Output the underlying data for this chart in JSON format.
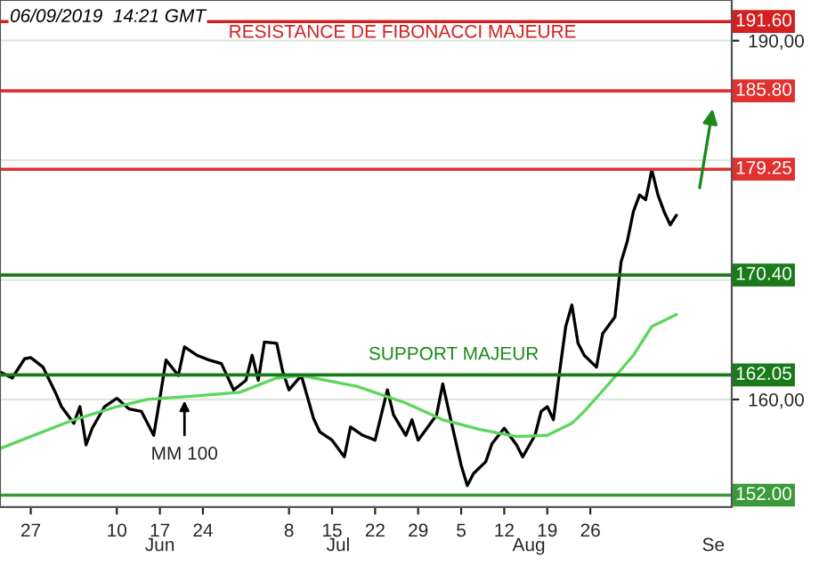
{
  "chart_data": {
    "type": "line",
    "series": [
      {
        "color": "#000000",
        "x": [
          "2019-05-22",
          "2019-05-24",
          "2019-05-26",
          "2019-05-27",
          "2019-05-29",
          "2019-05-31",
          "2019-06-01",
          "2019-06-03",
          "2019-06-04",
          "2019-06-05",
          "2019-06-06",
          "2019-06-08",
          "2019-06-10",
          "2019-06-12",
          "2019-06-14",
          "2019-06-16",
          "2019-06-17",
          "2019-06-18",
          "2019-06-20",
          "2019-06-21",
          "2019-06-23",
          "2019-06-25",
          "2019-06-27",
          "2019-06-29",
          "2019-07-01",
          "2019-07-02",
          "2019-07-03",
          "2019-07-04",
          "2019-07-06",
          "2019-07-07",
          "2019-07-08",
          "2019-07-10",
          "2019-07-12",
          "2019-07-13",
          "2019-07-15",
          "2019-07-17",
          "2019-07-18",
          "2019-07-20",
          "2019-07-22",
          "2019-07-24",
          "2019-07-25",
          "2019-07-27",
          "2019-07-28",
          "2019-07-29",
          "2019-08-01",
          "2019-08-02",
          "2019-08-03",
          "2019-08-05",
          "2019-08-06",
          "2019-08-07",
          "2019-08-09",
          "2019-08-10",
          "2019-08-12",
          "2019-08-14",
          "2019-08-15",
          "2019-08-17",
          "2019-08-18",
          "2019-08-19",
          "2019-08-20",
          "2019-08-21",
          "2019-08-22",
          "2019-08-23",
          "2019-08-24",
          "2019-08-25",
          "2019-08-27",
          "2019-08-28",
          "2019-08-30",
          "2019-08-31",
          "2019-09-01",
          "2019-09-02",
          "2019-09-03",
          "2019-09-04",
          "2019-09-05",
          "2019-09-06",
          "2019-09-07",
          "2019-09-08",
          "2019-09-09"
        ],
        "values": [
          162.3,
          161.8,
          163.4,
          163.5,
          162.7,
          160.6,
          159.4,
          158.0,
          159.4,
          156.2,
          157.6,
          159.4,
          160.1,
          159.2,
          159.0,
          157.0,
          160.1,
          163.3,
          162.0,
          164.4,
          163.7,
          163.3,
          163.0,
          160.8,
          161.6,
          163.7,
          161.6,
          164.8,
          164.7,
          162.3,
          160.8,
          162.0,
          158.4,
          157.3,
          156.6,
          155.2,
          157.7,
          157.0,
          156.6,
          160.8,
          158.7,
          157.0,
          158.3,
          156.6,
          158.7,
          161.3,
          159.0,
          154.5,
          152.8,
          153.8,
          154.8,
          156.3,
          157.6,
          156.2,
          155.2,
          157.0,
          159.0,
          159.4,
          158.3,
          162.3,
          166.1,
          167.9,
          164.7,
          163.7,
          162.7,
          165.5,
          166.9,
          171.5,
          173.2,
          175.7,
          177.1,
          176.7,
          179.2,
          177.1,
          175.7,
          174.6,
          175.4
        ]
      },
      {
        "color": "#5cd65c",
        "x": [
          "2019-05-22",
          "2019-06-03",
          "2019-06-10",
          "2019-06-15",
          "2019-06-23",
          "2019-06-30",
          "2019-07-06",
          "2019-07-10",
          "2019-07-19",
          "2019-07-27",
          "2019-08-02",
          "2019-08-08",
          "2019-08-14",
          "2019-08-19",
          "2019-08-23",
          "2019-08-25",
          "2019-08-29",
          "2019-09-02",
          "2019-09-05",
          "2019-09-09"
        ],
        "values": [
          155.9,
          158.3,
          159.4,
          160.0,
          160.3,
          160.6,
          161.8,
          162.0,
          161.1,
          159.7,
          158.3,
          157.5,
          156.9,
          157.0,
          158.0,
          159.0,
          161.3,
          163.7,
          166.1,
          167.1
        ]
      }
    ],
    "xlim": [
      "2019-05-22",
      "2019-09-18"
    ],
    "xticks": [
      {
        "value": "2019-05-27",
        "label": "27"
      },
      {
        "value": "2019-06-10",
        "label": "10"
      },
      {
        "value": "2019-06-17",
        "label": "17"
      },
      {
        "value": "2019-06-24",
        "label": "24"
      },
      {
        "value": "2019-07-08",
        "label": "8"
      },
      {
        "value": "2019-07-15",
        "label": "15"
      },
      {
        "value": "2019-07-22",
        "label": "22"
      },
      {
        "value": "2019-07-29",
        "label": "29"
      },
      {
        "value": "2019-08-05",
        "label": "5"
      },
      {
        "value": "2019-08-12",
        "label": "12"
      },
      {
        "value": "2019-08-19",
        "label": "19"
      },
      {
        "value": "2019-08-26",
        "label": "26"
      }
    ],
    "x2lim": [
      "2019-05-22",
      "2019-09-18"
    ],
    "x2ticks": [
      {
        "value": "2019-06-17",
        "label": "Jun"
      },
      {
        "value": "2019-07-16",
        "label": "Jul"
      },
      {
        "value": "2019-08-16",
        "label": "Aug"
      },
      {
        "value": "2019-09-15",
        "label": "Se"
      }
    ],
    "ylim": [
      151,
      193.4
    ],
    "yticks": [
      {
        "value": 160,
        "label": "160,00"
      },
      {
        "value": 170,
        "label": null
      },
      {
        "value": 180,
        "label": null
      },
      {
        "value": 190,
        "label": "190,00"
      }
    ],
    "grid": "y",
    "line_style": "solid",
    "ref_lines": [
      {
        "axis": "y",
        "value": 191.6,
        "label": "191.60",
        "color": "#d42020"
      },
      {
        "axis": "y",
        "value": 185.8,
        "label": "185.80",
        "color": "#e03030"
      },
      {
        "axis": "y",
        "value": 179.25,
        "label": "179.25",
        "color": "#e03030"
      },
      {
        "axis": "y",
        "value": 170.4,
        "label": "170.40",
        "color": "#1a7a1a"
      },
      {
        "axis": "y",
        "value": 162.05,
        "label": "162.05",
        "color": "#1a7a1a"
      },
      {
        "axis": "y",
        "value": 152.0,
        "label": "152.00",
        "color": "#3a9a3a"
      }
    ],
    "annotations": [
      "06/09/2019  14:21 GMT",
      "RESISTANCE DE FIBONACCI MAJEURE",
      "SUPPORT MAJEUR",
      {
        "text": "MM 100",
        "x": "2019-06-21",
        "y": 160.3
      }
    ]
  }
}
